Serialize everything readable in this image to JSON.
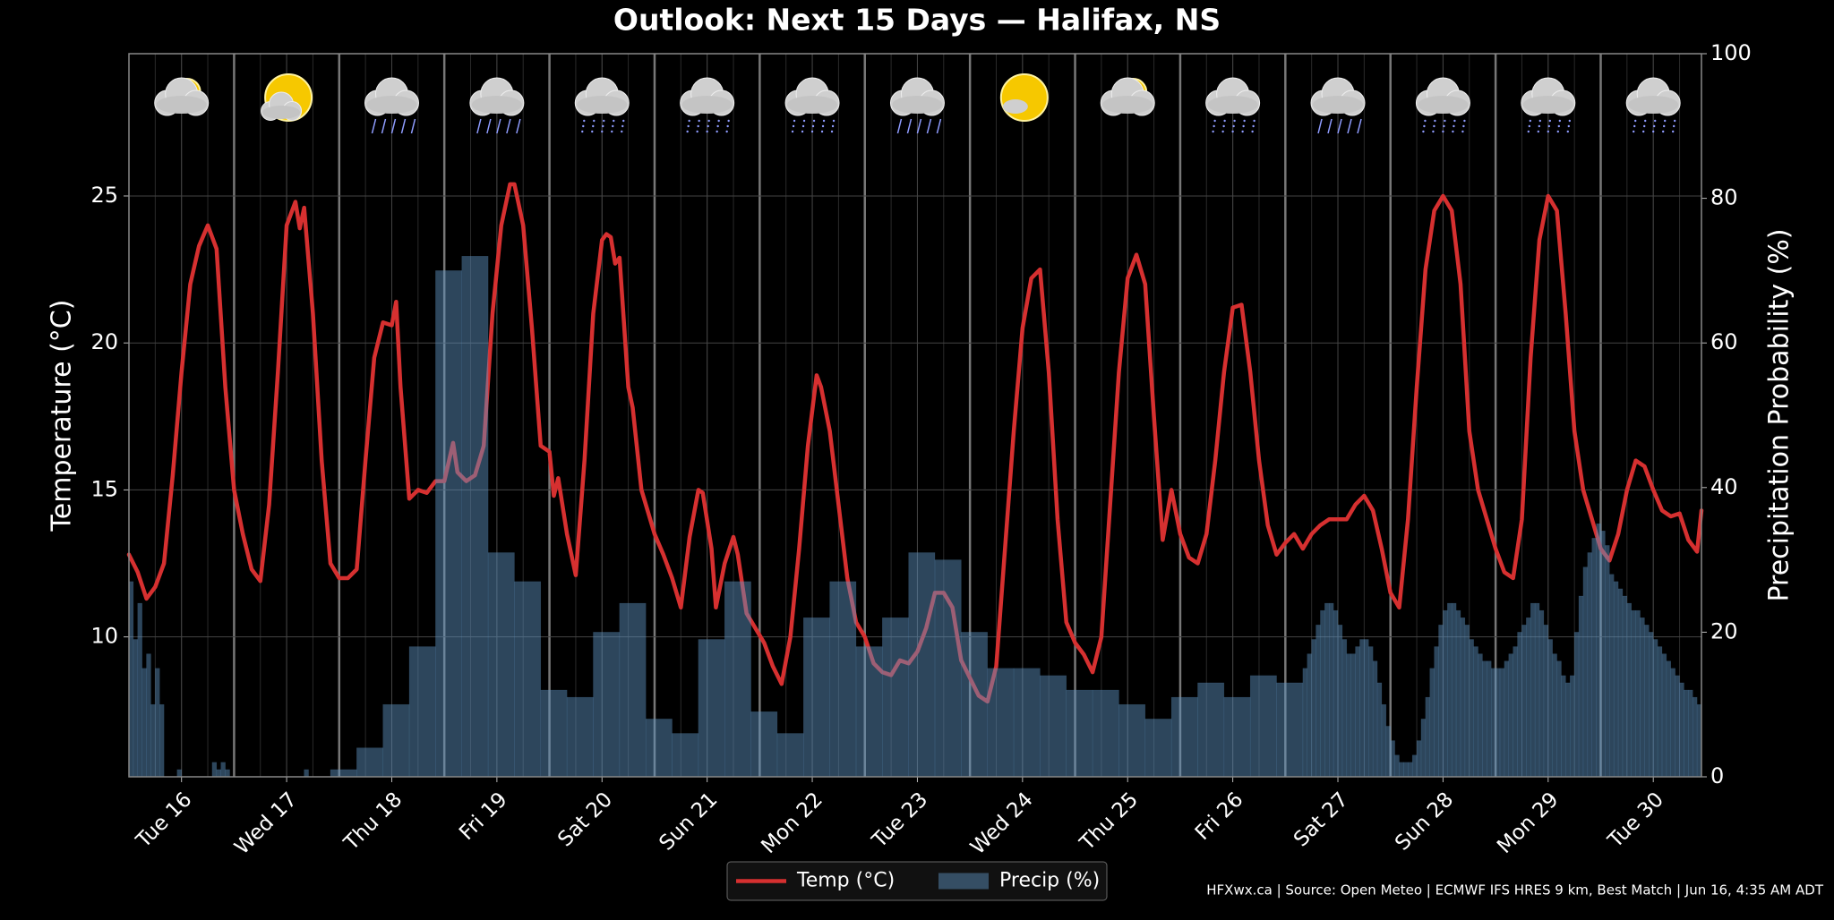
{
  "chart_data": {
    "type": "line",
    "title": "Outlook: Next 15 Days — Halifax, NS",
    "ylabel": "Temperature (°C)",
    "y2label": "Precipitation Probability (%)",
    "source": "HFXwx.ca | Source: Open Meteo | ECMWF IFS HRES 9 km, Best Match | Jun 16, 4:35 AM ADT",
    "legend": "lower center",
    "grid": true,
    "xlim": [
      0,
      359
    ],
    "xticks": [
      {
        "value": 12,
        "label": "Tue 16"
      },
      {
        "value": 36,
        "label": "Wed 17"
      },
      {
        "value": 60,
        "label": "Thu 18"
      },
      {
        "value": 84,
        "label": "Fri 19"
      },
      {
        "value": 108,
        "label": "Sat 20"
      },
      {
        "value": 132,
        "label": "Sun 21"
      },
      {
        "value": 156,
        "label": "Mon 22"
      },
      {
        "value": 180,
        "label": "Tue 23"
      },
      {
        "value": 204,
        "label": "Wed 24"
      },
      {
        "value": 228,
        "label": "Thu 25"
      },
      {
        "value": 252,
        "label": "Fri 26"
      },
      {
        "value": 276,
        "label": "Sat 27"
      },
      {
        "value": 300,
        "label": "Sun 28"
      },
      {
        "value": 324,
        "label": "Mon 29"
      },
      {
        "value": 348,
        "label": "Tue 30"
      }
    ],
    "ylim": [
      5.24,
      29.84
    ],
    "yticks": [
      10,
      15,
      20,
      25
    ],
    "y2lim": [
      0,
      100
    ],
    "y2ticks": [
      0,
      20,
      40,
      60,
      80,
      100
    ],
    "series": [
      {
        "name": "Temp (°C)",
        "type": "line",
        "color": "#d63030",
        "x": [
          0,
          2,
          4,
          6,
          8,
          10,
          12,
          14,
          16,
          18,
          20,
          22,
          24,
          26,
          28,
          30,
          32,
          34,
          36,
          38,
          39,
          40,
          42,
          44,
          46,
          48,
          50,
          52,
          54,
          56,
          58,
          60,
          61,
          62,
          64,
          66,
          68,
          70,
          72,
          74,
          75,
          77,
          79,
          81,
          83,
          85,
          87,
          88,
          90,
          92,
          94,
          96,
          97,
          98,
          100,
          102,
          104,
          106,
          108,
          109,
          110,
          111,
          112,
          114,
          115,
          117,
          120,
          122,
          124,
          126,
          128,
          130,
          131,
          133,
          134,
          136,
          138,
          139,
          141,
          143,
          145,
          147,
          149,
          151,
          153,
          155,
          157,
          158,
          160,
          162,
          164,
          166,
          168,
          170,
          172,
          174,
          176,
          178,
          180,
          182,
          184,
          186,
          188,
          190,
          192,
          194,
          196,
          198,
          200,
          202,
          204,
          206,
          208,
          210,
          212,
          214,
          216,
          218,
          220,
          222,
          224,
          226,
          228,
          230,
          232,
          234,
          236,
          238,
          240,
          242,
          244,
          246,
          248,
          250,
          252,
          254,
          256,
          258,
          260,
          262,
          264,
          266,
          268,
          270,
          272,
          274,
          276,
          278,
          280,
          282,
          284,
          286,
          288,
          290,
          292,
          294,
          296,
          298,
          300,
          302,
          304,
          306,
          308,
          310,
          312,
          314,
          316,
          318,
          320,
          322,
          324,
          326,
          328,
          330,
          332,
          334,
          336,
          338,
          340,
          342,
          344,
          346,
          348,
          350,
          352,
          354,
          356,
          358,
          359
        ],
        "values": [
          12.8,
          12.2,
          11.3,
          11.7,
          12.5,
          15.5,
          19.0,
          22.0,
          23.3,
          24.0,
          23.2,
          18.5,
          15.0,
          13.5,
          12.3,
          11.9,
          14.5,
          19.0,
          24.0,
          24.8,
          23.9,
          24.6,
          21.0,
          16.0,
          12.5,
          12.0,
          12.0,
          12.3,
          16.0,
          19.5,
          20.7,
          20.6,
          21.4,
          18.5,
          14.7,
          15.0,
          14.9,
          15.3,
          15.3,
          16.6,
          15.6,
          15.3,
          15.5,
          16.5,
          21.0,
          24.0,
          25.4,
          25.4,
          24.0,
          20.5,
          16.5,
          16.3,
          14.8,
          15.4,
          13.5,
          12.1,
          16.0,
          21.0,
          23.5,
          23.7,
          23.6,
          22.7,
          22.9,
          18.5,
          17.8,
          15.0,
          13.5,
          12.8,
          12.0,
          11.0,
          13.4,
          15.0,
          14.9,
          13.0,
          11.0,
          12.5,
          13.4,
          12.8,
          10.8,
          10.3,
          9.8,
          9.0,
          8.4,
          10.0,
          13.0,
          16.5,
          18.9,
          18.5,
          17.0,
          14.5,
          12.0,
          10.5,
          10.0,
          9.1,
          8.8,
          8.7,
          9.2,
          9.1,
          9.5,
          10.3,
          11.5,
          11.5,
          11.0,
          9.2,
          8.6,
          8.0,
          7.8,
          9.0,
          13.0,
          17.0,
          20.5,
          22.2,
          22.5,
          19.0,
          14.0,
          10.5,
          9.8,
          9.4,
          8.8,
          10.0,
          14.5,
          19.0,
          22.2,
          23.0,
          22.0,
          17.5,
          13.3,
          15.0,
          13.5,
          12.7,
          12.5,
          13.5,
          16.0,
          19.0,
          21.2,
          21.3,
          19.0,
          16.0,
          13.8,
          12.8,
          13.2,
          13.5,
          13.0,
          13.5,
          13.8,
          14.0,
          14.0,
          14.0,
          14.5,
          14.8,
          14.3,
          13.0,
          11.5,
          11.0,
          14.0,
          18.5,
          22.5,
          24.5,
          25.0,
          24.5,
          22.0,
          17.0,
          15.0,
          14.0,
          13.0,
          12.2,
          12.0,
          14.0,
          19.5,
          23.5,
          25.0,
          24.5,
          21.0,
          17.0,
          15.0,
          14.0,
          13.0,
          12.6,
          13.5,
          15.0,
          16.0,
          15.8,
          15.0,
          14.3,
          14.1,
          14.2,
          13.3,
          12.9,
          14.3
        ]
      },
      {
        "name": "Precip (%)",
        "type": "histogram",
        "axis": "y2",
        "color": "#5e93c0",
        "bins": [
          0,
          1,
          2,
          3,
          4,
          5,
          6,
          7,
          8,
          11,
          12,
          19,
          20,
          21,
          22,
          23,
          40,
          41,
          46,
          52,
          58,
          64,
          70,
          76,
          82,
          88,
          94,
          100,
          106,
          112,
          118,
          124,
          130,
          136,
          142,
          148,
          154,
          160,
          166,
          172,
          178,
          184,
          190,
          196,
          202,
          208,
          214,
          220,
          226,
          232,
          238,
          244,
          250,
          256,
          262,
          268,
          269,
          270,
          271,
          272,
          273,
          274,
          275,
          276,
          277,
          278,
          279,
          280,
          281,
          282,
          283,
          284,
          285,
          286,
          287,
          288,
          289,
          290,
          291,
          292,
          293,
          294,
          295,
          296,
          297,
          298,
          299,
          300,
          301,
          302,
          303,
          304,
          305,
          306,
          307,
          308,
          309,
          310,
          311,
          312,
          313,
          314,
          315,
          316,
          317,
          318,
          319,
          320,
          321,
          322,
          323,
          324,
          325,
          326,
          327,
          328,
          329,
          330,
          331,
          332,
          333,
          334,
          335,
          336,
          337,
          338,
          339,
          340,
          341,
          342,
          343,
          344,
          345,
          346,
          347,
          348,
          349,
          350,
          351,
          352,
          353,
          354,
          355,
          356,
          357,
          358,
          359
        ],
        "values": [
          27,
          19,
          24,
          15,
          17,
          10,
          15,
          10,
          0,
          1,
          0,
          2,
          1,
          2,
          1,
          0,
          1,
          0,
          1,
          4,
          10,
          18,
          70,
          72,
          31,
          27,
          12,
          11,
          20,
          24,
          8,
          6,
          19,
          27,
          9,
          6,
          22,
          27,
          18,
          22,
          31,
          30,
          20,
          15,
          15,
          14,
          12,
          12,
          10,
          8,
          11,
          13,
          11,
          14,
          13,
          15,
          17,
          19,
          21,
          23,
          24,
          24,
          23,
          21,
          19,
          17,
          17,
          18,
          19,
          19,
          18,
          16,
          13,
          10,
          7,
          5,
          3,
          2,
          2,
          2,
          3,
          5,
          8,
          11,
          15,
          18,
          21,
          23,
          24,
          24,
          23,
          22,
          21,
          19,
          18,
          17,
          16,
          16,
          15,
          15,
          15,
          16,
          17,
          18,
          20,
          21,
          22,
          24,
          24,
          23,
          21,
          19,
          17,
          16,
          14,
          13,
          14,
          20,
          25,
          29,
          31,
          33,
          35,
          34,
          32,
          28,
          27,
          26,
          25,
          24,
          23,
          23,
          22,
          21,
          20,
          19,
          18,
          17,
          16,
          15,
          14,
          13,
          12,
          12,
          11,
          10
        ]
      }
    ]
  }
}
